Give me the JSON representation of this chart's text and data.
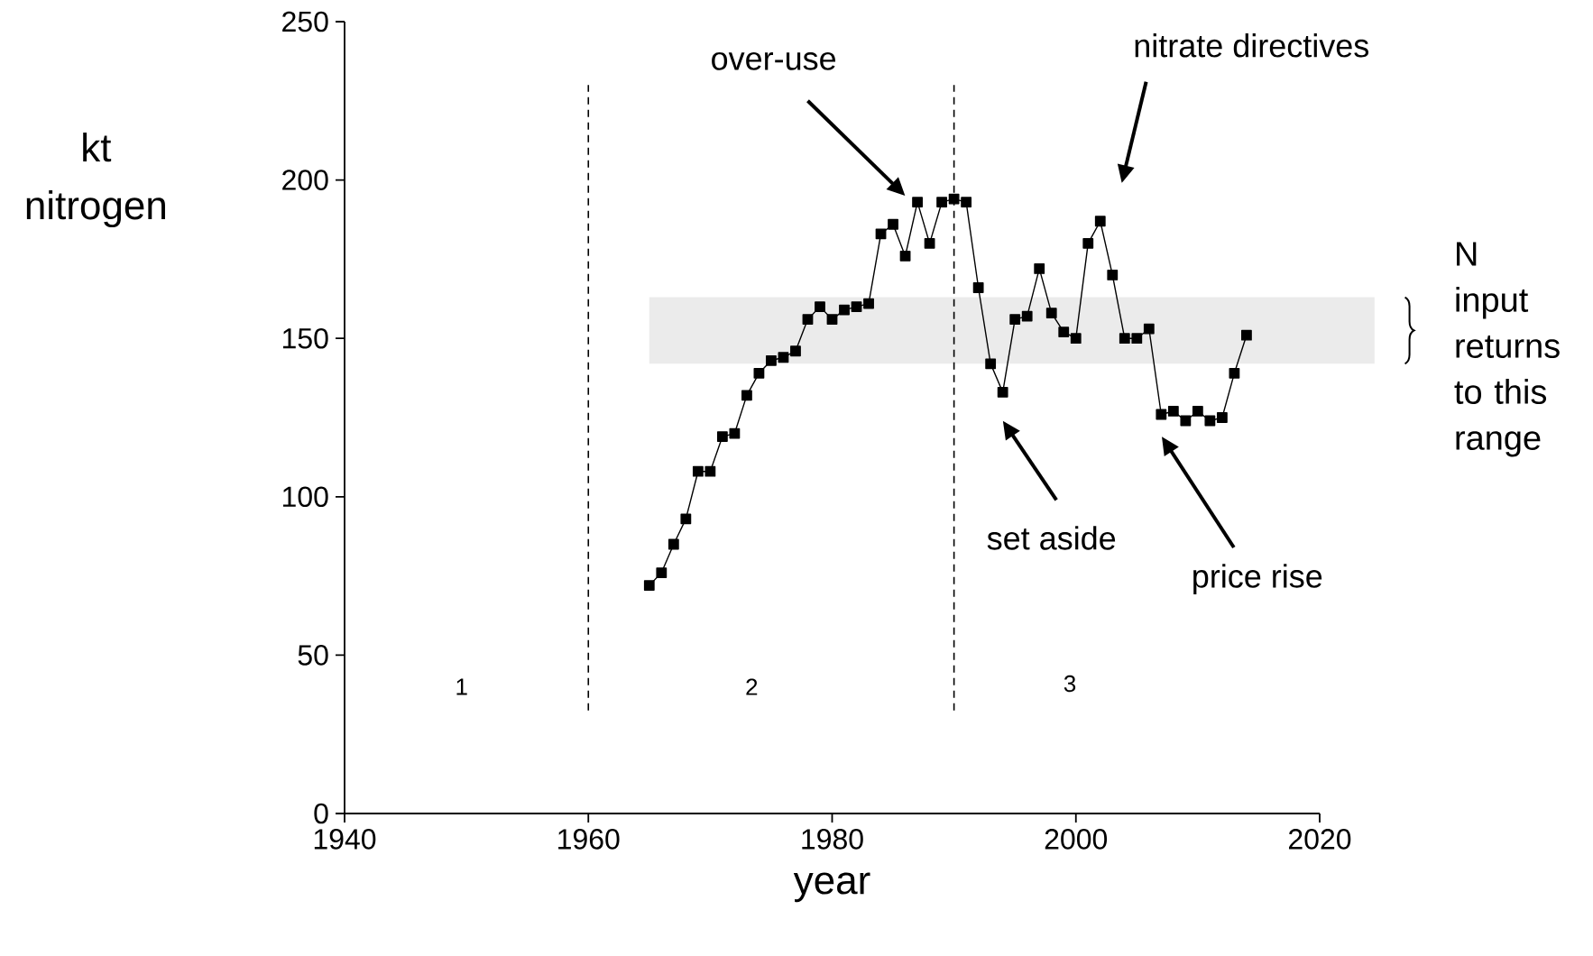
{
  "chart_data": {
    "type": "line",
    "xlabel": "year",
    "ylabel": "kt nitrogen",
    "x": [
      1965,
      1966,
      1967,
      1968,
      1969,
      1970,
      1971,
      1972,
      1973,
      1974,
      1975,
      1976,
      1977,
      1978,
      1979,
      1980,
      1981,
      1982,
      1983,
      1984,
      1985,
      1986,
      1987,
      1988,
      1989,
      1990,
      1991,
      1992,
      1993,
      1994,
      1995,
      1996,
      1997,
      1998,
      1999,
      2000,
      2001,
      2002,
      2003,
      2004,
      2005,
      2006,
      2007,
      2008,
      2009,
      2010,
      2011,
      2012,
      2013,
      2014
    ],
    "values": [
      72,
      76,
      85,
      93,
      108,
      108,
      119,
      120,
      132,
      139,
      143,
      144,
      146,
      156,
      160,
      156,
      159,
      160,
      161,
      183,
      186,
      176,
      193,
      180,
      193,
      194,
      193,
      166,
      142,
      133,
      156,
      157,
      172,
      158,
      152,
      150,
      180,
      187,
      170,
      150,
      150,
      153,
      126,
      127,
      124,
      127,
      124,
      125,
      139,
      151
    ],
    "color": "#000000",
    "marker": "square",
    "line_style": "solid",
    "xlim": [
      1940,
      2020
    ],
    "ylim": [
      0,
      250
    ],
    "xticks": [
      1940,
      1960,
      1980,
      2000,
      2020
    ],
    "yticks": [
      0,
      50,
      100,
      150,
      200,
      250
    ],
    "grid": false,
    "ref_lines": [
      {
        "axis": "x",
        "value": 1960,
        "line_style": "dashed",
        "color": "#000000"
      },
      {
        "axis": "x",
        "value": 1990,
        "line_style": "dashed",
        "color": "#000000"
      }
    ],
    "bands": [
      {
        "axis": "y",
        "from": 142,
        "to": 163,
        "label": "N input returns to this range",
        "color": "#ebebeb"
      }
    ],
    "annotations": [
      "over-use",
      "nitrate directives",
      "set aside",
      "price rise",
      "1",
      "2",
      "3"
    ]
  }
}
